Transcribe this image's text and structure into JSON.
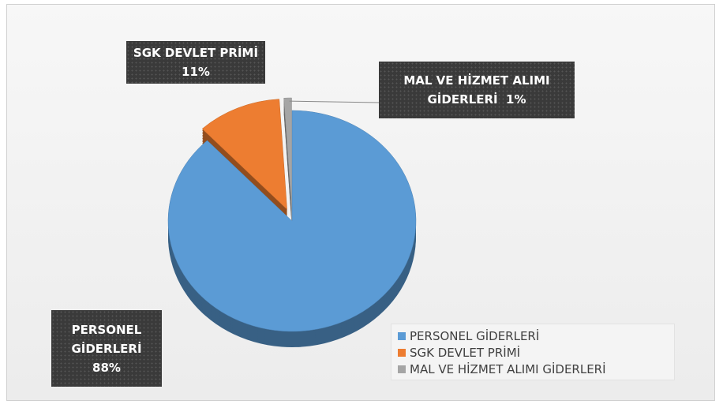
{
  "chart_data": {
    "type": "pie",
    "categories": [
      "PERSONEL GİDERLERİ",
      "SGK DEVLET PRİMİ",
      "MAL VE HİZMET ALIMI GİDERLERİ"
    ],
    "values": [
      88,
      11,
      1
    ],
    "value_labels": [
      "88%",
      "11%",
      "1%"
    ],
    "colors": [
      "#5b9bd5",
      "#ed7d31",
      "#a5a5a5"
    ],
    "legend": "bottom-right"
  }
}
